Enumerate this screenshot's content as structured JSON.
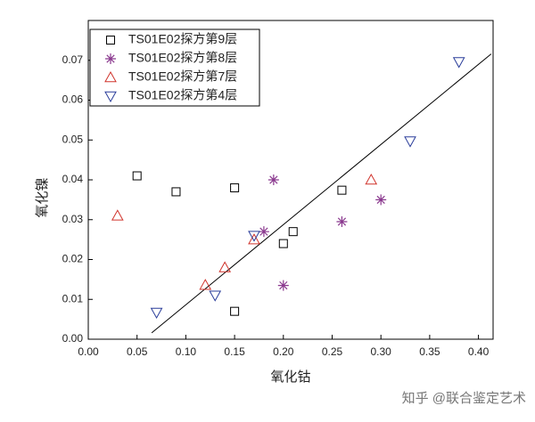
{
  "chart_data": {
    "type": "scatter",
    "x_label": "氧化钴",
    "y_label": "氧化镍",
    "xlim": [
      0,
      0.415
    ],
    "ylim": [
      0,
      0.08
    ],
    "xticks": [
      {
        "value": 0,
        "label": "0.00"
      },
      0.05,
      {
        "value": 0.1,
        "label": "0.10"
      },
      0.15,
      {
        "value": 0.2,
        "label": "0.20"
      },
      0.25,
      {
        "value": 0.3,
        "label": "0.30"
      },
      0.35,
      {
        "value": 0.4,
        "label": "0.40"
      }
    ],
    "yticks": [
      {
        "value": 0,
        "label": "0.00"
      },
      0.01,
      0.02,
      0.03,
      0.04,
      0.05,
      0.06,
      0.07
    ],
    "legend": "upper-left",
    "series": [
      {
        "name": "TS01E02探方第9层",
        "marker": "square",
        "color": "#000000",
        "x": [
          0.05,
          0.09,
          0.15,
          0.15,
          0.2,
          0.21,
          0.26
        ],
        "values": [
          0.041,
          0.037,
          0.038,
          0.007,
          0.024,
          0.027,
          0.0374
        ]
      },
      {
        "name": "TS01E02探方第8层",
        "marker": "asterisk",
        "color": "#8b3a8f",
        "x": [
          0.19,
          0.18,
          0.2,
          0.26,
          0.3
        ],
        "values": [
          0.04,
          0.027,
          0.0135,
          0.0295,
          0.035
        ]
      },
      {
        "name": "TS01E02探方第7层",
        "marker": "triangle-up",
        "color": "#d0342c",
        "x": [
          0.03,
          0.12,
          0.14,
          0.17,
          0.29
        ],
        "values": [
          0.031,
          0.0136,
          0.018,
          0.025,
          0.04
        ]
      },
      {
        "name": "TS01E02探方第4层",
        "marker": "triangle-down",
        "color": "#2a3d9a",
        "x": [
          0.07,
          0.13,
          0.17,
          0.33,
          0.38
        ],
        "values": [
          0.0067,
          0.011,
          0.026,
          0.0497,
          0.0696
        ]
      }
    ],
    "fit_line": {
      "color": "#000000",
      "x": [
        0.065,
        0.413
      ],
      "values": [
        0.0016,
        0.0716
      ]
    },
    "watermark": "知乎 @联合鉴定艺术"
  }
}
